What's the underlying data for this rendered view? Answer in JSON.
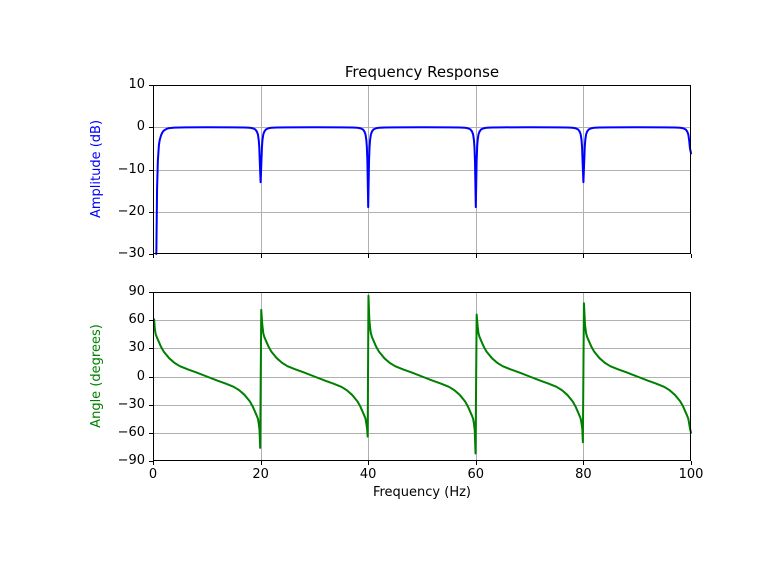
{
  "figure": {
    "title": "Frequency Response",
    "background_color": "#ffffff",
    "grid_color": "#b0b0b0",
    "spine_color": "#000000"
  },
  "chart_data": [
    {
      "type": "line",
      "title": "Frequency Response",
      "xlabel": "",
      "ylabel": "Amplitude (dB)",
      "ylabel_color": "#0000ff",
      "xlim": [
        0,
        100
      ],
      "ylim": [
        -30,
        10
      ],
      "xticks": [
        0,
        20,
        40,
        60,
        80,
        100
      ],
      "xtick_labels": [],
      "yticks": [
        10,
        0,
        -10,
        -20,
        -30
      ],
      "ytick_labels": [
        "10",
        "0",
        "−10",
        "−20",
        "−30"
      ],
      "grid": "on",
      "grid_color": "#b0b0b0",
      "legend": "none",
      "notch_frequencies_hz": [
        0,
        20,
        40,
        60,
        80,
        100
      ],
      "notch_min_db": [
        -30,
        -13,
        -18.9,
        -18.9,
        -13,
        -6.2
      ],
      "series": [
        {
          "name": "amplitude",
          "color": "#0000ff",
          "points": [
            [
              0.62,
              -30
            ],
            [
              0.75,
              -15
            ],
            [
              0.9,
              -8
            ],
            [
              1.1,
              -4.2
            ],
            [
              1.25,
              -3
            ],
            [
              1.5,
              -1.9
            ],
            [
              1.75,
              -1.2
            ],
            [
              2,
              -0.8
            ],
            [
              2.5,
              -0.4
            ],
            [
              3,
              -0.2
            ],
            [
              4,
              -0.08
            ],
            [
              6,
              -0.02
            ],
            [
              10,
              0
            ],
            [
              15,
              -0.02
            ],
            [
              17,
              -0.06
            ],
            [
              18,
              -0.13
            ],
            [
              18.5,
              -0.23
            ],
            [
              19,
              -0.5
            ],
            [
              19.3,
              -1
            ],
            [
              19.5,
              -1.7
            ],
            [
              19.65,
              -3
            ],
            [
              19.75,
              -4.7
            ],
            [
              19.85,
              -8.1
            ],
            [
              20,
              -13
            ],
            [
              20.15,
              -8.1
            ],
            [
              20.25,
              -4.7
            ],
            [
              20.35,
              -3
            ],
            [
              20.5,
              -1.7
            ],
            [
              20.7,
              -1
            ],
            [
              21,
              -0.5
            ],
            [
              21.5,
              -0.23
            ],
            [
              22,
              -0.13
            ],
            [
              23,
              -0.06
            ],
            [
              25,
              -0.02
            ],
            [
              30,
              0
            ],
            [
              35,
              -0.02
            ],
            [
              37,
              -0.06
            ],
            [
              38,
              -0.13
            ],
            [
              38.5,
              -0.23
            ],
            [
              39,
              -0.5
            ],
            [
              39.3,
              -1
            ],
            [
              39.5,
              -1.7
            ],
            [
              39.65,
              -3
            ],
            [
              39.75,
              -4.7
            ],
            [
              39.85,
              -8.1
            ],
            [
              40,
              -18.9
            ],
            [
              40.15,
              -8.1
            ],
            [
              40.25,
              -4.7
            ],
            [
              40.35,
              -3
            ],
            [
              40.5,
              -1.7
            ],
            [
              40.7,
              -1
            ],
            [
              41,
              -0.5
            ],
            [
              41.5,
              -0.23
            ],
            [
              42,
              -0.13
            ],
            [
              43,
              -0.06
            ],
            [
              45,
              -0.02
            ],
            [
              50,
              0
            ],
            [
              55,
              -0.02
            ],
            [
              57,
              -0.06
            ],
            [
              58,
              -0.13
            ],
            [
              58.5,
              -0.23
            ],
            [
              59,
              -0.5
            ],
            [
              59.3,
              -1
            ],
            [
              59.5,
              -1.7
            ],
            [
              59.65,
              -3
            ],
            [
              59.75,
              -4.7
            ],
            [
              59.85,
              -8.1
            ],
            [
              60,
              -18.9
            ],
            [
              60.15,
              -8.1
            ],
            [
              60.25,
              -4.7
            ],
            [
              60.35,
              -3
            ],
            [
              60.5,
              -1.7
            ],
            [
              60.7,
              -1
            ],
            [
              61,
              -0.5
            ],
            [
              61.5,
              -0.23
            ],
            [
              62,
              -0.13
            ],
            [
              63,
              -0.06
            ],
            [
              65,
              -0.02
            ],
            [
              70,
              0
            ],
            [
              75,
              -0.02
            ],
            [
              77,
              -0.06
            ],
            [
              78,
              -0.13
            ],
            [
              78.5,
              -0.23
            ],
            [
              79,
              -0.5
            ],
            [
              79.3,
              -1
            ],
            [
              79.5,
              -1.7
            ],
            [
              79.65,
              -3
            ],
            [
              79.75,
              -4.7
            ],
            [
              79.85,
              -8.1
            ],
            [
              80,
              -13
            ],
            [
              80.15,
              -8.1
            ],
            [
              80.25,
              -4.7
            ],
            [
              80.35,
              -3
            ],
            [
              80.5,
              -1.7
            ],
            [
              80.7,
              -1
            ],
            [
              81,
              -0.5
            ],
            [
              81.5,
              -0.23
            ],
            [
              82,
              -0.13
            ],
            [
              83,
              -0.06
            ],
            [
              85,
              -0.02
            ],
            [
              90,
              0
            ],
            [
              95,
              -0.02
            ],
            [
              97,
              -0.06
            ],
            [
              98,
              -0.13
            ],
            [
              98.5,
              -0.23
            ],
            [
              99,
              -0.5
            ],
            [
              99.3,
              -1
            ],
            [
              99.5,
              -1.7
            ],
            [
              99.65,
              -3
            ],
            [
              99.8,
              -4.9
            ],
            [
              100,
              -6.2
            ]
          ]
        }
      ]
    },
    {
      "type": "line",
      "title": "",
      "xlabel": "Frequency (Hz)",
      "ylabel": "Angle (degrees)",
      "ylabel_color": "#008000",
      "xlim": [
        0,
        100
      ],
      "ylim": [
        -90,
        90
      ],
      "xticks": [
        0,
        20,
        40,
        60,
        80,
        100
      ],
      "xtick_labels": [
        "0",
        "20",
        "40",
        "60",
        "80",
        "100"
      ],
      "yticks": [
        90,
        60,
        30,
        0,
        -30,
        -60,
        -90
      ],
      "ytick_labels": [
        "90",
        "60",
        "30",
        "0",
        "−30",
        "−60",
        "−90"
      ],
      "grid": "on",
      "grid_color": "#b0b0b0",
      "legend": "none",
      "phase_jump_frequencies_hz": [
        20,
        40,
        60,
        80
      ],
      "series": [
        {
          "name": "angle",
          "color": "#008000",
          "points": [
            [
              0.2,
              61
            ],
            [
              0.35,
              50
            ],
            [
              0.5,
              45
            ],
            [
              0.7,
              42
            ],
            [
              1,
              38
            ],
            [
              1.5,
              31.5
            ],
            [
              2,
              26.5
            ],
            [
              3,
              19.5
            ],
            [
              4,
              14.5
            ],
            [
              5,
              11
            ],
            [
              6.5,
              7.5
            ],
            [
              8,
              4.5
            ],
            [
              10,
              0
            ],
            [
              12,
              -4.5
            ],
            [
              13.5,
              -7.5
            ],
            [
              15,
              -11
            ],
            [
              16,
              -14.5
            ],
            [
              17,
              -19.5
            ],
            [
              18,
              -26.5
            ],
            [
              18.5,
              -31.5
            ],
            [
              19,
              -38
            ],
            [
              19.3,
              -42
            ],
            [
              19.5,
              -45
            ],
            [
              19.65,
              -50
            ],
            [
              19.8,
              -57
            ],
            [
              19.92,
              -76
            ],
            [
              20.12,
              71
            ],
            [
              20.3,
              56
            ],
            [
              20.5,
              46
            ],
            [
              20.7,
              42
            ],
            [
              21,
              38
            ],
            [
              21.5,
              31.5
            ],
            [
              22,
              26.5
            ],
            [
              23,
              19.5
            ],
            [
              24,
              14.5
            ],
            [
              25,
              11
            ],
            [
              26.5,
              7.5
            ],
            [
              28,
              4.5
            ],
            [
              30,
              0
            ],
            [
              32,
              -4.5
            ],
            [
              33.5,
              -7.5
            ],
            [
              35,
              -11
            ],
            [
              36,
              -14.5
            ],
            [
              37,
              -19.5
            ],
            [
              38,
              -26.5
            ],
            [
              38.5,
              -31.5
            ],
            [
              39,
              -38
            ],
            [
              39.3,
              -42
            ],
            [
              39.5,
              -45
            ],
            [
              39.65,
              -50
            ],
            [
              39.8,
              -56
            ],
            [
              39.9,
              -64
            ],
            [
              40.05,
              86
            ],
            [
              40.2,
              62
            ],
            [
              40.35,
              52
            ],
            [
              40.5,
              46
            ],
            [
              40.7,
              42
            ],
            [
              41,
              38
            ],
            [
              41.5,
              31.5
            ],
            [
              42,
              26.5
            ],
            [
              43,
              19.5
            ],
            [
              44,
              14.5
            ],
            [
              45,
              11
            ],
            [
              46.5,
              7.5
            ],
            [
              48,
              4.5
            ],
            [
              50,
              0
            ],
            [
              52,
              -4.5
            ],
            [
              53.5,
              -7.5
            ],
            [
              55,
              -11
            ],
            [
              56,
              -14.5
            ],
            [
              57,
              -19.5
            ],
            [
              58,
              -26.5
            ],
            [
              58.5,
              -31.5
            ],
            [
              59,
              -38
            ],
            [
              59.3,
              -42
            ],
            [
              59.5,
              -45
            ],
            [
              59.65,
              -50
            ],
            [
              59.8,
              -57
            ],
            [
              59.95,
              -82
            ],
            [
              60.16,
              66
            ],
            [
              60.35,
              53
            ],
            [
              60.5,
              46
            ],
            [
              60.7,
              42
            ],
            [
              61,
              38
            ],
            [
              61.5,
              31.5
            ],
            [
              62,
              26.5
            ],
            [
              63,
              19.5
            ],
            [
              64,
              14.5
            ],
            [
              65,
              11
            ],
            [
              66.5,
              7.5
            ],
            [
              68,
              4.5
            ],
            [
              70,
              0
            ],
            [
              72,
              -4.5
            ],
            [
              73.5,
              -7.5
            ],
            [
              75,
              -11
            ],
            [
              76,
              -14.5
            ],
            [
              77,
              -19.5
            ],
            [
              78,
              -26.5
            ],
            [
              78.5,
              -31.5
            ],
            [
              79,
              -38
            ],
            [
              79.3,
              -42
            ],
            [
              79.5,
              -45
            ],
            [
              79.65,
              -50
            ],
            [
              79.8,
              -56
            ],
            [
              79.9,
              -70
            ],
            [
              80.1,
              78
            ],
            [
              80.3,
              55
            ],
            [
              80.5,
              46
            ],
            [
              80.7,
              42
            ],
            [
              81,
              38
            ],
            [
              81.5,
              31.5
            ],
            [
              82,
              26.5
            ],
            [
              83,
              19.5
            ],
            [
              84,
              14.5
            ],
            [
              85,
              11
            ],
            [
              86.5,
              7.5
            ],
            [
              88,
              4.5
            ],
            [
              90,
              0
            ],
            [
              92,
              -4.5
            ],
            [
              93.5,
              -7.5
            ],
            [
              95,
              -11
            ],
            [
              96,
              -14.5
            ],
            [
              97,
              -19.5
            ],
            [
              98,
              -26.5
            ],
            [
              98.5,
              -31.5
            ],
            [
              99,
              -38
            ],
            [
              99.3,
              -42
            ],
            [
              99.5,
              -45
            ],
            [
              99.65,
              -50
            ],
            [
              99.8,
              -55
            ],
            [
              100,
              -60
            ]
          ]
        }
      ]
    }
  ]
}
